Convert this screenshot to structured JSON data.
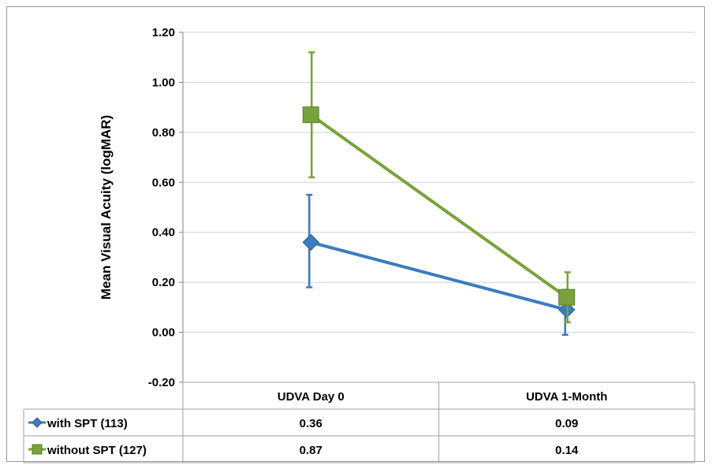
{
  "chart_data": {
    "type": "line",
    "title": "",
    "xlabel": "",
    "ylabel": "Mean Visual Acuity (logMAR)",
    "categories": [
      "UDVA Day 0",
      "UDVA 1-Month"
    ],
    "ylim": [
      -0.2,
      1.2
    ],
    "yticks": [
      "1.20",
      "1.00",
      "0.80",
      "0.60",
      "0.40",
      "0.20",
      "0.00",
      "-0.20"
    ],
    "ytick_values": [
      1.2,
      1.0,
      0.8,
      0.6,
      0.4,
      0.2,
      0.0,
      -0.2
    ],
    "grid": true,
    "legend_placement": "data-table",
    "series": [
      {
        "name": "with SPT (113)",
        "values": [
          0.36,
          0.09
        ],
        "value_labels": [
          "0.36",
          "0.09"
        ],
        "error_upper": [
          0.55,
          0.17
        ],
        "error_lower": [
          0.18,
          -0.01
        ],
        "marker": "diamond",
        "color": "#3c7bbf"
      },
      {
        "name": "without SPT (127)",
        "values": [
          0.87,
          0.14
        ],
        "value_labels": [
          "0.87",
          "0.14"
        ],
        "error_upper": [
          1.12,
          0.24
        ],
        "error_lower": [
          0.62,
          0.04
        ],
        "marker": "square",
        "color": "#79a23c"
      }
    ]
  }
}
